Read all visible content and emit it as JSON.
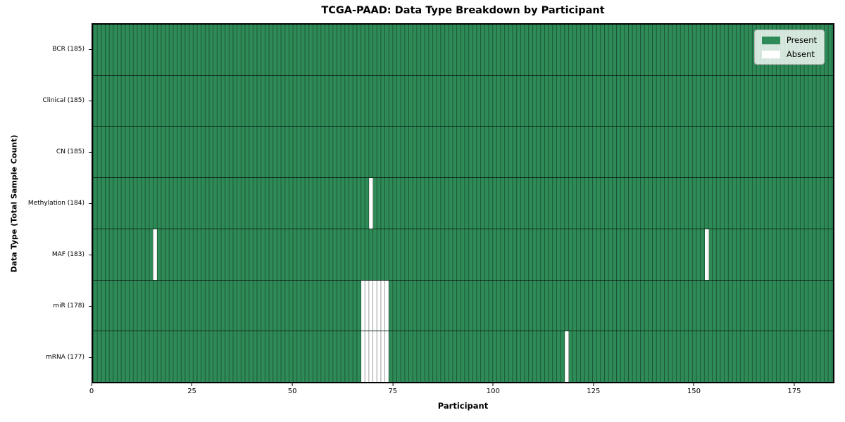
{
  "chart_data": {
    "type": "heatmap",
    "title": "TCGA-PAAD: Data Type Breakdown by Participant",
    "xlabel": "Participant",
    "ylabel": "Data Type (Total Sample Count)",
    "grid": true,
    "legend_position": "upper right",
    "x_axis": {
      "min": 0,
      "max": 185,
      "ticks": [
        0,
        25,
        50,
        75,
        100,
        125,
        150,
        175
      ]
    },
    "n_participants": 185,
    "legend": {
      "entries": [
        {
          "label": "Present",
          "color": "#2e8b57"
        },
        {
          "label": "Absent",
          "color": "#ffffff"
        }
      ]
    },
    "rows": [
      {
        "label": "BCR (185)",
        "data_type": "BCR",
        "total_samples": 185,
        "absent_participants": []
      },
      {
        "label": "Clinical (185)",
        "data_type": "Clinical",
        "total_samples": 185,
        "absent_participants": []
      },
      {
        "label": "CN (185)",
        "data_type": "CN",
        "total_samples": 185,
        "absent_participants": []
      },
      {
        "label": "Methylation (184)",
        "data_type": "Methylation",
        "total_samples": 184,
        "absent_participants": [
          69
        ]
      },
      {
        "label": "MAF (183)",
        "data_type": "MAF",
        "total_samples": 183,
        "absent_participants": [
          15,
          153
        ]
      },
      {
        "label": "miR (178)",
        "data_type": "miR",
        "total_samples": 178,
        "absent_participants": [
          67,
          68,
          69,
          70,
          71,
          72,
          73
        ]
      },
      {
        "label": "mRNA (177)",
        "data_type": "mRNA",
        "total_samples": 177,
        "absent_participants": [
          67,
          68,
          69,
          70,
          71,
          72,
          73,
          118
        ]
      }
    ],
    "colors": {
      "present": "#2e8b57",
      "absent": "#ffffff"
    }
  }
}
